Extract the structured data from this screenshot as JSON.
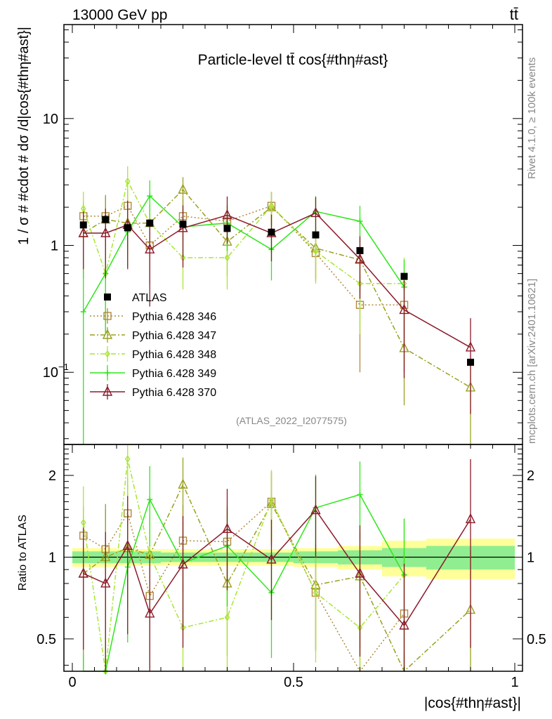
{
  "header": {
    "energy_label": "13000 GeV pp",
    "process_label": "tt̄"
  },
  "side_labels": {
    "rivet": "Rivet 4.1.0, ≥ 100k events",
    "mcplots": "mcplots.cern.ch [arXiv:2401.10621]"
  },
  "chart_data": [
    {
      "type": "line",
      "panel": "main",
      "title": "Particle-level tt̄ cos{#thη#ast}",
      "ylabel": "1 / σ # #cdot # dσ /d|cos{#thη#ast}|",
      "xlabel": "",
      "yscale": "log",
      "xlim": [
        0,
        1
      ],
      "ylim": [
        0.027,
        55
      ],
      "y_tick_labels": [
        {
          "value": 10,
          "label": "10"
        },
        {
          "value": 1,
          "label": "1"
        },
        {
          "value": 0.1,
          "label": "10−1"
        }
      ],
      "analysis_tag": "(ATLAS_2022_I2077575)",
      "legend_position": "middle-left",
      "x": [
        0.025,
        0.075,
        0.125,
        0.175,
        0.25,
        0.35,
        0.45,
        0.55,
        0.65,
        0.75,
        0.9
      ],
      "data": {
        "name": "ATLAS",
        "color": "#000000",
        "values": [
          1.45,
          1.6,
          1.38,
          1.5,
          1.47,
          1.36,
          1.27,
          1.21,
          0.91,
          0.57,
          0.12
        ]
      },
      "series": [
        {
          "name": "Pythia 6.428 346",
          "color": "#b08a3c",
          "dash": "dotted",
          "marker": "square",
          "values": [
            1.7,
            1.7,
            2.05,
            1.0,
            1.7,
            1.55,
            2.05,
            0.87,
            0.34,
            0.34,
            null
          ],
          "errors": [
            0.5,
            0.8,
            0.7,
            0.5,
            0.6,
            0.5,
            0.6,
            0.35,
            0.24,
            0.24,
            null
          ],
          "ratio": [
            1.2,
            1.07,
            1.45,
            0.72,
            1.15,
            1.14,
            1.6,
            0.74,
            0.37,
            0.62,
            null
          ]
        },
        {
          "name": "Pythia 6.428 347",
          "color": "#9aa01e",
          "dash": "dashdot",
          "marker": "triangle",
          "values": [
            1.25,
            1.6,
            1.5,
            1.5,
            2.75,
            1.07,
            2.0,
            0.95,
            0.77,
            0.155,
            0.076
          ],
          "errors": [
            0.7,
            0.8,
            0.6,
            0.6,
            0.7,
            0.5,
            0.6,
            0.4,
            0.35,
            0.1,
            0.05
          ],
          "ratio": [
            0.87,
            1.0,
            1.08,
            1.02,
            1.85,
            0.8,
            1.57,
            0.79,
            0.85,
            0.27,
            0.64
          ]
        },
        {
          "name": "Pythia 6.428 348",
          "color": "#a8e632",
          "dash": "dashdot",
          "marker": "diamond",
          "values": [
            1.95,
            0.6,
            3.2,
            1.5,
            0.8,
            0.8,
            2.05,
            0.9,
            0.5,
            0.5,
            null
          ],
          "errors": [
            0.7,
            0.4,
            1.0,
            0.6,
            0.35,
            0.35,
            0.6,
            0.4,
            0.3,
            0.3,
            null
          ],
          "ratio": [
            1.34,
            0.38,
            2.3,
            1.02,
            0.55,
            0.6,
            1.62,
            0.74,
            0.55,
            0.86,
            null
          ]
        },
        {
          "name": "Pythia 6.428 349",
          "color": "#2ee61a",
          "dash": "solid",
          "marker": "cross",
          "values": [
            0.3,
            0.6,
            1.28,
            2.45,
            1.4,
            1.5,
            0.93,
            1.85,
            1.55,
            0.47,
            null
          ],
          "errors": [
            0.35,
            0.4,
            0.6,
            0.8,
            0.6,
            0.6,
            0.4,
            0.6,
            0.5,
            0.3,
            null
          ],
          "ratio": [
            0.2,
            0.38,
            0.92,
            1.63,
            0.95,
            1.1,
            0.74,
            1.52,
            1.7,
            0.86,
            null
          ]
        },
        {
          "name": "Pythia 6.428 370",
          "color": "#8b1a2a",
          "dash": "solid",
          "marker": "triangle",
          "values": [
            1.25,
            1.25,
            1.45,
            0.93,
            1.37,
            1.73,
            1.25,
            1.8,
            0.78,
            0.31,
            0.157
          ],
          "errors": [
            0.6,
            0.7,
            0.8,
            0.6,
            0.7,
            0.7,
            0.5,
            0.6,
            0.4,
            0.22,
            0.11
          ],
          "ratio": [
            0.87,
            0.8,
            1.1,
            0.62,
            0.94,
            1.27,
            0.98,
            1.49,
            0.87,
            0.56,
            1.38
          ]
        }
      ]
    },
    {
      "type": "line",
      "panel": "ratio",
      "ylabel": "Ratio to ATLAS",
      "xlabel": "|cos{#thη#ast}|",
      "yscale": "log",
      "xlim": [
        0,
        1
      ],
      "ylim": [
        0.38,
        2.6
      ],
      "x_tick_labels": [
        {
          "value": 0,
          "label": "0"
        },
        {
          "value": 0.5,
          "label": "0.5"
        },
        {
          "value": 1,
          "label": "1"
        }
      ],
      "y_tick_labels": [
        {
          "value": 2,
          "label": "2"
        },
        {
          "value": 1,
          "label": "1"
        },
        {
          "value": 0.5,
          "label": "0.5"
        }
      ],
      "reference_line": 1,
      "uncertainty_bands": {
        "bin_edges": [
          0.0,
          0.05,
          0.1,
          0.15,
          0.2,
          0.3,
          0.4,
          0.5,
          0.6,
          0.7,
          0.8,
          1.0
        ],
        "green_halfwidth": [
          0.05,
          0.05,
          0.05,
          0.05,
          0.04,
          0.04,
          0.04,
          0.05,
          0.06,
          0.08,
          0.1
        ],
        "yellow_halfwidth": [
          0.08,
          0.08,
          0.07,
          0.07,
          0.07,
          0.07,
          0.07,
          0.08,
          0.1,
          0.15,
          0.17
        ],
        "green_color": "#90ee90",
        "yellow_color": "#ffff99"
      }
    }
  ]
}
